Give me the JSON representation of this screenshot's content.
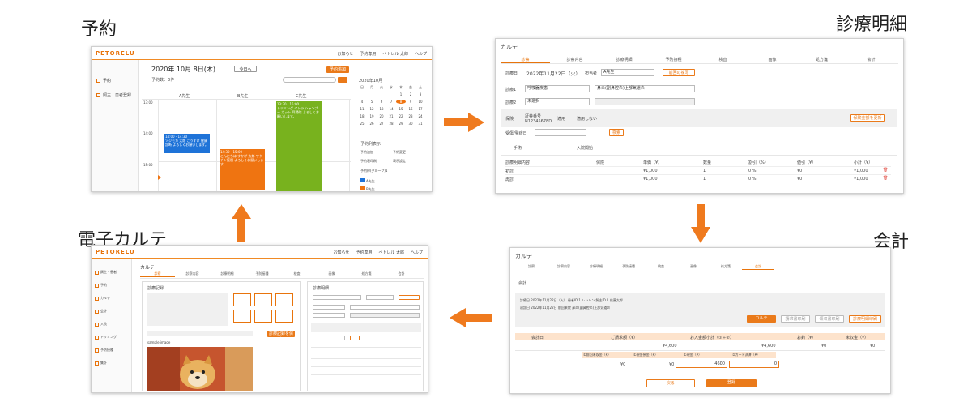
{
  "captions": {
    "reservation": "予約",
    "detail": "診療明細",
    "karte": "電子カルテ",
    "accounting": "会計"
  },
  "reservation_screen": {
    "logo": "PETORELU",
    "nav": [
      "お知らせ",
      "予約専用",
      "ペトレル 太郎",
      "ヘルプ"
    ],
    "date": "2020年 10月 8日(木)",
    "today_button": "今日へ",
    "count": "予約数：3件",
    "new_button": "予約追加",
    "sidebar": [
      "予約",
      "飼主・患者登録"
    ],
    "doctors": [
      "A先生",
      "B先生",
      "C先生"
    ],
    "times": [
      "13:00",
      "14:00",
      "15:00"
    ],
    "appointments": [
      {
        "time": "14:00 - 14:30",
        "text": "ソジモカ 太郎 こうすけ 健康診断 よろしくお願いします。",
        "color": "#1e73d8"
      },
      {
        "time": "14:30 - 15:00",
        "text": "こんにちは すかげ 太郎 ワクチン接種 よろしくお願いします。",
        "color": "#ef7411"
      },
      {
        "time": "13:30 - 15:00",
        "text": "トリミング ペトラ シャンプー カット 耳掃除 よろしくお願いします。",
        "color": "#78b21e"
      }
    ],
    "cal_month": "2020年10月",
    "cal_weekdays": [
      "日",
      "月",
      "火",
      "水",
      "木",
      "金",
      "土"
    ],
    "cal_days": [
      "",
      "",
      "",
      "",
      "1",
      "2",
      "3",
      "4",
      "5",
      "6",
      "7",
      "8",
      "9",
      "10",
      "11",
      "12",
      "13",
      "14",
      "15",
      "16",
      "17",
      "18",
      "19",
      "20",
      "21",
      "22",
      "23",
      "24",
      "25",
      "26",
      "27",
      "28",
      "29",
      "30",
      "31"
    ],
    "list_title": "予約列表示",
    "list_items": [
      "予約追加",
      "予約変更",
      "予約表印刷",
      "表示設定",
      "予約枠(グループ)1"
    ],
    "checks": [
      "A先生",
      "B先生"
    ]
  },
  "detail_screen": {
    "title": "カルテ",
    "tabs": [
      "診察",
      "診察内容",
      "診療明細",
      "予防接種",
      "検査",
      "画像",
      "処方箋",
      "会計"
    ],
    "date_label": "診療日",
    "date_value": "2022年11月22日（火）",
    "vet_label": "担当者",
    "vet_value": "A先生",
    "copy_button": "前回の複写",
    "row1_label": "診療1",
    "row1_value": "呼吸器疾患",
    "row1_value2": "鼻炎(副鼻腔炎)上部気道炎",
    "row2_label": "診療2",
    "row2_value": "未選択",
    "insurance_label": "保険",
    "insurance_no": "証券番号 N12345678D",
    "ins_opt1": "適用",
    "ins_opt2": "適用しない",
    "ins_button": "保険金額を更新",
    "receipt_label": "受傷/発症日",
    "receipt_button": "検索",
    "checks": [
      "手術",
      "入院開始"
    ],
    "table_headers": [
      "診療明細内容",
      "保険",
      "単価（¥）",
      "数量",
      "割引（%）",
      "値引（¥）",
      "小計（¥）"
    ],
    "rows": [
      {
        "name": "初診",
        "price": "¥1,000",
        "qty": "1",
        "disc": "0 %",
        "off": "¥0",
        "sub": "¥1,000"
      },
      {
        "name": "再診",
        "price": "¥1,000",
        "qty": "1",
        "disc": "0 %",
        "off": "¥0",
        "sub": "¥1,000"
      }
    ]
  },
  "karte_screen": {
    "logo": "PETORELU",
    "nav": [
      "お知らせ",
      "予約専用",
      "ペトレル 太郎",
      "ヘルプ"
    ],
    "title": "カルテ",
    "tabs": [
      "診察",
      "診察内容",
      "診療明細",
      "予防接種",
      "検査",
      "画像",
      "処方箋",
      "会計"
    ],
    "sidebar": [
      "飼主・患者",
      "予約",
      "カルテ",
      "会計",
      "入院",
      "トリミング",
      "予防接種",
      "集計"
    ],
    "panel_left": "診療記録",
    "panel_right": "診療明細",
    "photo_caption": "sample image",
    "save_button": "診療記録を保存"
  },
  "accounting_screen": {
    "title": "カルテ",
    "tabs": [
      "診察",
      "診察内容",
      "診療明細",
      "予防接種",
      "検査",
      "画像",
      "処方箋",
      "会計"
    ],
    "section": "会計",
    "info1": "診療日  2022年11月22日（火）  患者ID  1  レンレン  飼主ID  1  佐藤太郎",
    "info2": "初診日  2022年11月22日  前回来院  鼻炎(副鼻腔炎)上部気道炎",
    "buttons": [
      "カルテ",
      "請求書印刷",
      "領収書印刷",
      "診療明細印刷"
    ],
    "headers1": [
      "会計日",
      "ご請求額（¥）",
      "お入金額小計（①＋②）",
      "お釣（¥）",
      "未収金（¥）"
    ],
    "values1": [
      "¥4,600",
      "¥4,600",
      "¥0",
      "¥0"
    ],
    "headers2": [
      "①前回未収金（¥）",
      "①現金預金（¥）",
      "①現金（¥）",
      "②カード決済（¥）"
    ],
    "values2": [
      "¥0",
      "¥0",
      "4600",
      "0"
    ],
    "back_button": "戻る",
    "register_button": "登録"
  }
}
